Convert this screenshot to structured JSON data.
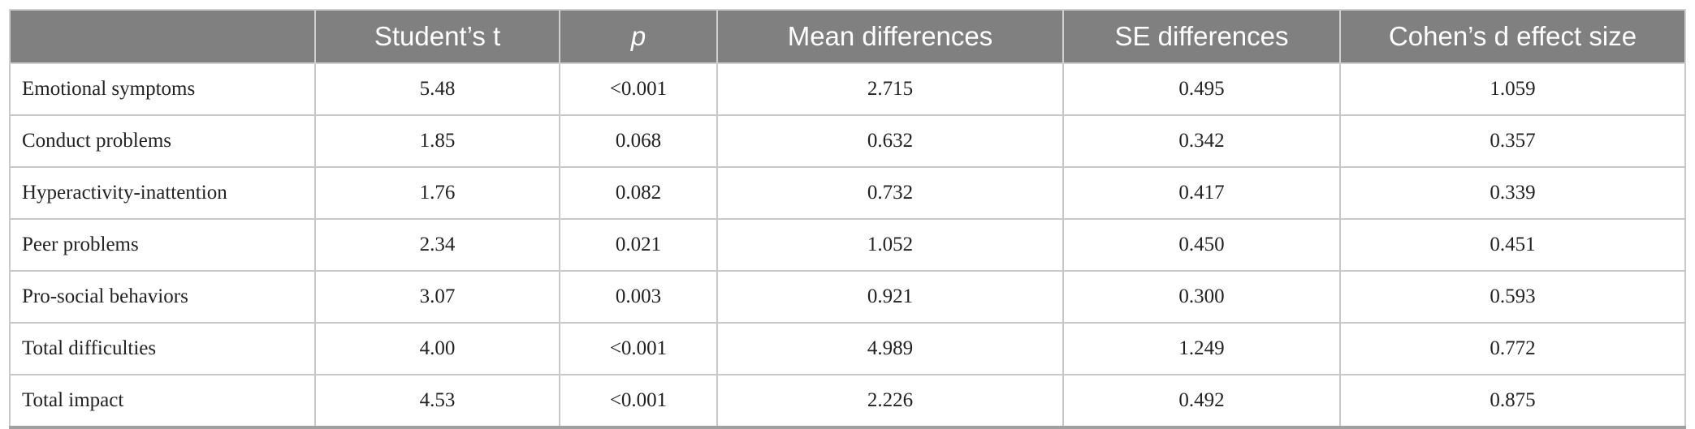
{
  "table": {
    "header": [
      "Student’s t",
      "p",
      "Mean differences",
      "SE differences",
      "Cohen’s d effect size"
    ],
    "rows": [
      [
        "Emotional symptoms",
        "5.48",
        "<0.001",
        "2.715",
        "0.495",
        "1.059"
      ],
      [
        "Conduct problems",
        "1.85",
        "0.068",
        "0.632",
        "0.342",
        "0.357"
      ],
      [
        "Hyperactivity-inattention",
        "1.76",
        "0.082",
        "0.732",
        "0.417",
        "0.339"
      ],
      [
        "Peer problems",
        "2.34",
        "0.021",
        "1.052",
        "0.450",
        "0.451"
      ],
      [
        "Pro-social behaviors",
        "3.07",
        "0.003",
        "0.921",
        "0.300",
        "0.593"
      ],
      [
        "Total difficulties",
        "4.00",
        "<0.001",
        "4.989",
        "1.249",
        "0.772"
      ],
      [
        "Total impact",
        "4.53",
        "<0.001",
        "2.226",
        "0.492",
        "0.875"
      ]
    ]
  }
}
